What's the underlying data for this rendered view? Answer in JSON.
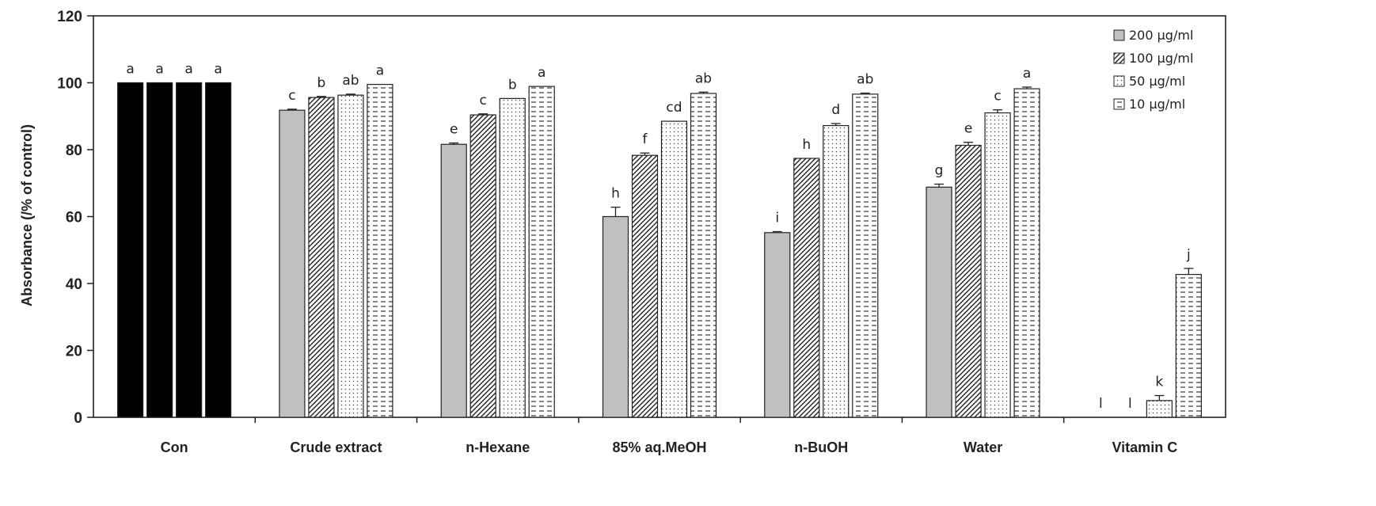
{
  "chart_data": {
    "type": "bar",
    "title": "",
    "xlabel": "",
    "ylabel": "Absorbance (/% of control)",
    "ylim": [
      0,
      120
    ],
    "yticks": [
      0,
      20,
      40,
      60,
      80,
      100,
      120
    ],
    "grid": false,
    "legend_position": "top-right",
    "categories": [
      "Con",
      "Crude extract",
      "n-Hexane",
      "85% aq.MeOH",
      "n-BuOH",
      "Water",
      "Vitamin C"
    ],
    "series": [
      {
        "name": "200 μg/ml",
        "pattern": "solid-gray",
        "values": [
          100,
          91.8,
          81.6,
          60.0,
          55.2,
          68.8,
          0
        ],
        "errors": [
          0,
          0.3,
          0.4,
          2.8,
          0.3,
          0.9,
          0
        ],
        "letters": [
          "a",
          "c",
          "e",
          "h",
          "i",
          "g",
          "l"
        ]
      },
      {
        "name": "100 μg/ml",
        "pattern": "diagonal-hatch",
        "values": [
          100,
          95.6,
          90.4,
          78.3,
          77.4,
          81.3,
          0
        ],
        "errors": [
          0,
          0.3,
          0.3,
          0.7,
          0,
          0.9,
          0
        ],
        "letters": [
          "a",
          "b",
          "c",
          "f",
          "h",
          "e",
          "l"
        ]
      },
      {
        "name": "50 μg/ml",
        "pattern": "dots",
        "values": [
          100,
          96.3,
          95.3,
          88.5,
          87.2,
          91.0,
          5.0
        ],
        "errors": [
          0,
          0.3,
          0,
          0,
          0.6,
          0.9,
          1.5
        ],
        "letters": [
          "a",
          "ab",
          "b",
          "cd",
          "d",
          "c",
          "k"
        ]
      },
      {
        "name": "10 μg/ml",
        "pattern": "dashes",
        "values": [
          100,
          99.5,
          98.9,
          96.8,
          96.6,
          98.2,
          42.7
        ],
        "errors": [
          0,
          0,
          0,
          0.4,
          0.3,
          0.5,
          1.8
        ],
        "letters": [
          "a",
          "a",
          "a",
          "ab",
          "ab",
          "a",
          "j"
        ]
      }
    ]
  },
  "colors": {
    "control_fill": "#000000",
    "gray_fill": "#c0c0c0",
    "ink": "#222222"
  }
}
